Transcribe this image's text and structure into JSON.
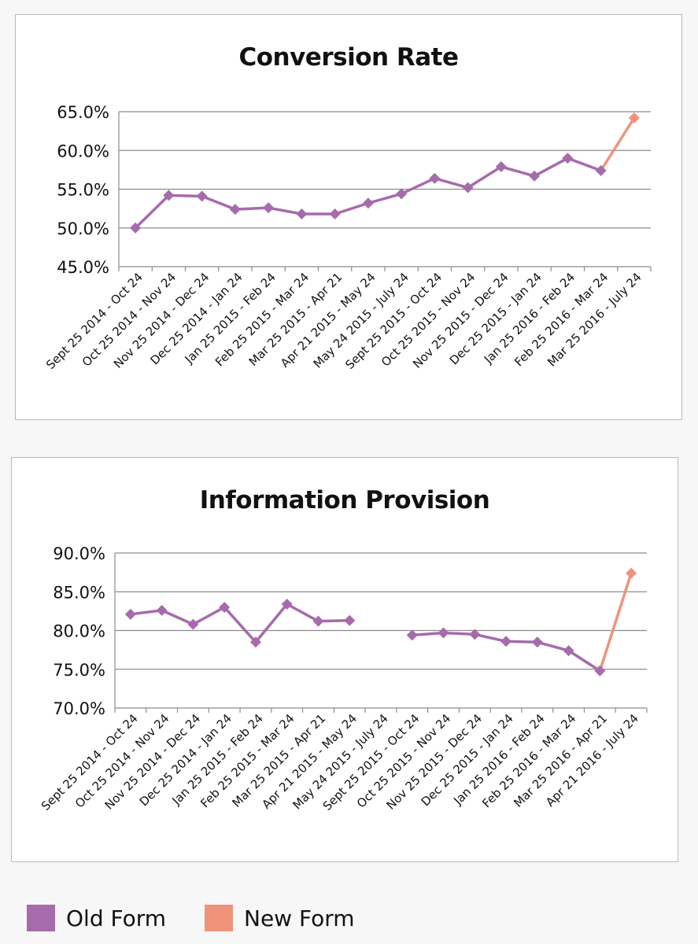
{
  "legend": {
    "old_label": "Old Form",
    "new_label": "New Form",
    "old_color": "#a66bab",
    "new_color": "#f0937b"
  },
  "chart_data": [
    {
      "type": "line",
      "title": "Conversion Rate",
      "xlabel": "",
      "ylabel": "",
      "ylim": [
        45.0,
        65.0
      ],
      "yticks": [
        "45.0%",
        "50.0%",
        "55.0%",
        "60.0%",
        "65.0%"
      ],
      "ytick_values": [
        45,
        50,
        55,
        60,
        65
      ],
      "grid": true,
      "categories": [
        "Sept 25 2014 - Oct 24",
        "Oct 25 2014 - Nov 24",
        "Nov 25 2014 - Dec 24",
        "Dec 25 2014 - Jan 24",
        "Jan 25 2015 - Feb 24",
        "Feb 25 2015 - Mar 24",
        "Mar 25 2015 - Apr 21",
        "Apr 21 2015 - May 24",
        "May 24 2015 - July 24",
        "Sept 25 2015 - Oct 24",
        "Oct 25 2015 - Nov 24",
        "Nov 25 2015 - Dec 24",
        "Dec 25 2015 - Jan 24",
        "Jan 25 2016 - Feb 24",
        "Feb 25 2016 - Mar 24",
        "Mar 25 2016 - July 24"
      ],
      "series": [
        {
          "name": "Old Form",
          "color": "#a66bab",
          "values": [
            50.0,
            54.2,
            54.1,
            52.4,
            52.6,
            51.8,
            51.8,
            53.2,
            54.4,
            56.4,
            55.2,
            57.9,
            56.7,
            59.0,
            57.4,
            null
          ]
        },
        {
          "name": "New Form",
          "color": "#f0937b",
          "values": [
            null,
            null,
            null,
            null,
            null,
            null,
            null,
            null,
            null,
            null,
            null,
            null,
            null,
            null,
            57.4,
            64.2
          ]
        }
      ]
    },
    {
      "type": "line",
      "title": "Information Provision",
      "xlabel": "",
      "ylabel": "",
      "ylim": [
        70.0,
        90.0
      ],
      "yticks": [
        "70.0%",
        "75.0%",
        "80.0%",
        "85.0%",
        "90.0%"
      ],
      "ytick_values": [
        70,
        75,
        80,
        85,
        90
      ],
      "grid": true,
      "categories": [
        "Sept 25 2014 - Oct 24",
        "Oct 25 2014 - Nov 24",
        "Nov 25 2014 - Dec 24",
        "Dec 25 2014 - Jan 24",
        "Jan 25 2015 - Feb 24",
        "Feb 25 2015 - Mar 24",
        "Mar 25 2015 - Apr 21",
        "Apr 21 2015 - May 24",
        "May 24 2015 - July 24",
        "Sept 25 2015 - Oct 24",
        "Oct 25 2015 - Nov 24",
        "Nov 25 2015 - Dec 24",
        "Dec 25 2015 - Jan 24",
        "Jan 25 2016 - Feb 24",
        "Feb 25 2016 - Mar 24",
        "Mar 25 2016 - Apr 21",
        "Apr 21 2016 - July 24"
      ],
      "series": [
        {
          "name": "Old Form",
          "color": "#a66bab",
          "values": [
            82.1,
            82.6,
            80.8,
            83.0,
            78.5,
            83.4,
            81.2,
            81.3,
            null,
            79.4,
            79.7,
            79.5,
            78.6,
            78.5,
            77.4,
            74.8,
            null
          ]
        },
        {
          "name": "New Form",
          "color": "#f0937b",
          "values": [
            null,
            null,
            null,
            null,
            null,
            null,
            null,
            null,
            null,
            null,
            null,
            null,
            null,
            null,
            null,
            74.8,
            87.4
          ]
        }
      ]
    }
  ]
}
